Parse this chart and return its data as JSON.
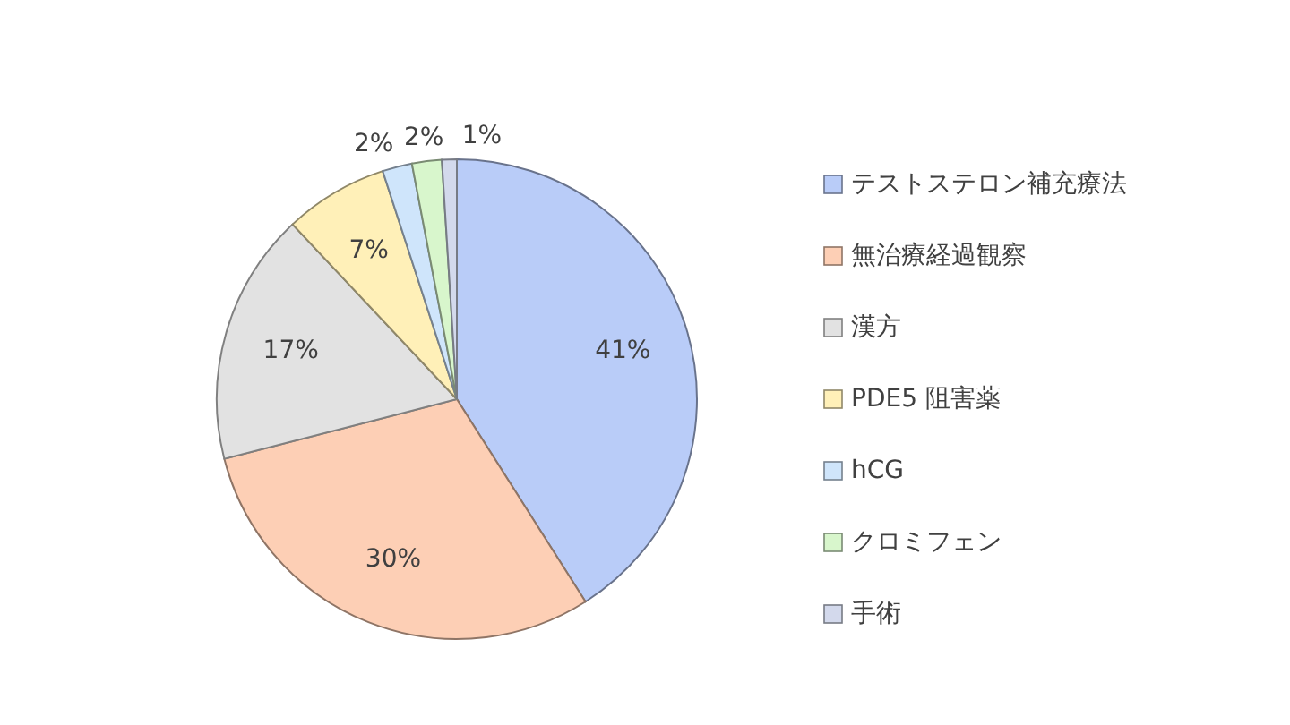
{
  "chart_data": {
    "type": "pie",
    "categories": [
      "テストステロン補充療法",
      "無治療経過観察",
      "漢方",
      "PDE5 阻害薬",
      "hCG",
      "クロミフェン",
      "手術"
    ],
    "values": [
      41,
      30,
      17,
      7,
      2,
      2,
      1
    ],
    "colors": [
      "#b9ccf8",
      "#fdcfb5",
      "#e2e2e2",
      "#fff0b8",
      "#cfe5fb",
      "#d8f6cc",
      "#d3d9ec"
    ],
    "value_labels": [
      "41%",
      "30%",
      "17%",
      "7%",
      "2%",
      "2%",
      "1%"
    ],
    "legend": "right"
  }
}
